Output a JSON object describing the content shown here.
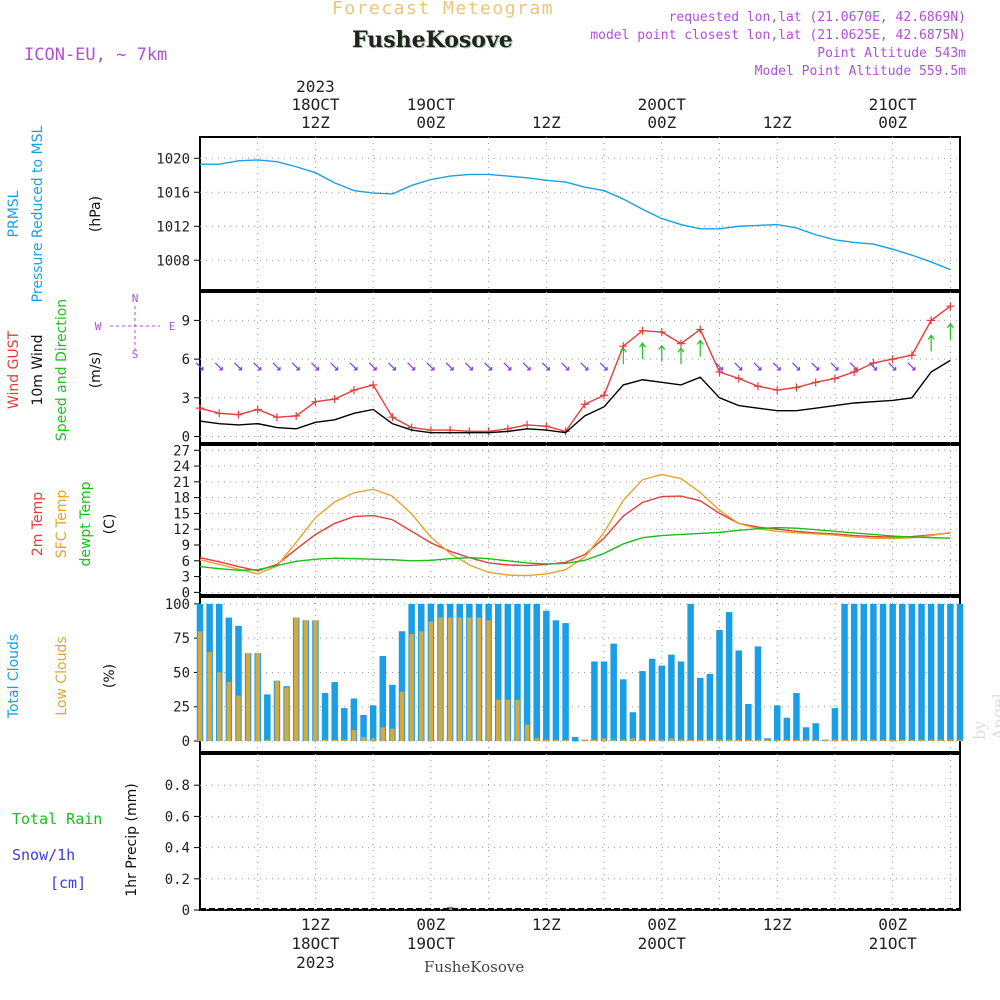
{
  "header": {
    "forecast_title": "Forecast Meteogram",
    "location": "FusheKosove",
    "model": "ICON-EU, ~ 7km",
    "requested": "requested lon,lat (21.0670E, 42.6869N)",
    "closest": "model point closest lon,lat (21.0625E, 42.6875N)",
    "point_alt": "Point Altitude 543m",
    "model_alt": "Model Point Altitude 559.5m"
  },
  "footer": {
    "location": "FusheKosove"
  },
  "watermark": "by Angel",
  "colors": {
    "pressure": "#1aa0e6",
    "gust": "#e63c3c",
    "wind": "#000000",
    "arrows": "#22c022",
    "t2m": "#e63c3c",
    "tsfc": "#e6a428",
    "dewpt": "#18c018",
    "total_clouds": "#1a9ee6",
    "low_clouds": "#d8a83c",
    "rain": "#18c018",
    "snow": "#3c3ce6",
    "label_purple": "#b050d8",
    "title_gold": "#e8c878"
  },
  "chart_data": [
    {
      "type": "line",
      "panel": "pressure",
      "ylabel": [
        "PRMSL",
        "Pressure Reduced to MSL"
      ],
      "unit": "(hPa)",
      "ylim": [
        1004.5,
        1022.5
      ],
      "yticks": [
        1008,
        1012,
        1016,
        1020
      ],
      "x_hours": [
        0,
        2,
        4,
        6,
        8,
        10,
        12,
        14,
        16,
        18,
        20,
        22,
        24,
        26,
        28,
        30,
        32,
        34,
        36,
        38,
        40,
        42,
        44,
        46,
        48,
        50,
        52,
        54,
        56,
        58,
        60,
        62,
        64,
        66,
        68,
        70,
        72,
        74,
        76,
        78
      ],
      "series": [
        {
          "values": [
            1019.3,
            1019.3,
            1019.7,
            1019.8,
            1019.6,
            1019.0,
            1018.3,
            1017.1,
            1016.2,
            1015.9,
            1015.8,
            1016.8,
            1017.5,
            1017.9,
            1018.1,
            1018.1,
            1017.9,
            1017.7,
            1017.4,
            1017.2,
            1016.6,
            1016.2,
            1015.2,
            1014.0,
            1012.9,
            1012.2,
            1011.7,
            1011.7,
            1012.0,
            1012.1,
            1012.2,
            1011.8,
            1011.0,
            1010.4,
            1010.1,
            1009.9,
            1009.3,
            1008.6,
            1007.8,
            1006.9
          ]
        }
      ]
    },
    {
      "type": "line",
      "panel": "wind",
      "ylabel": [
        "Wind GUST",
        "10m Wind",
        "Speed and Direction"
      ],
      "unit": "(m/s)",
      "compass": [
        "N",
        "W",
        "E",
        "S"
      ],
      "ylim": [
        -0.5,
        11.2
      ],
      "yticks": [
        0,
        3,
        6,
        9
      ],
      "x_hours": [
        0,
        2,
        4,
        6,
        8,
        10,
        12,
        14,
        16,
        18,
        20,
        22,
        24,
        26,
        28,
        30,
        32,
        34,
        36,
        38,
        40,
        42,
        44,
        46,
        48,
        50,
        52,
        54,
        56,
        58,
        60,
        62,
        64,
        66,
        68,
        70,
        72,
        74,
        76,
        78
      ],
      "series": [
        {
          "name": "Wind GUST",
          "values": [
            2.2,
            1.8,
            1.7,
            2.1,
            1.5,
            1.6,
            2.7,
            2.9,
            3.6,
            4.0,
            1.5,
            0.7,
            0.5,
            0.5,
            0.4,
            0.4,
            0.6,
            0.9,
            0.8,
            0.4,
            2.5,
            3.2,
            7.0,
            8.2,
            8.1,
            7.2,
            8.3,
            5.0,
            4.5,
            3.9,
            3.6,
            3.8,
            4.2,
            4.5,
            5.0,
            5.7,
            6.0,
            6.3,
            9.0,
            10.1
          ]
        },
        {
          "name": "10m Wind",
          "values": [
            1.2,
            1.0,
            0.9,
            1.0,
            0.7,
            0.6,
            1.1,
            1.3,
            1.8,
            2.1,
            1.0,
            0.5,
            0.3,
            0.3,
            0.3,
            0.3,
            0.4,
            0.6,
            0.5,
            0.3,
            1.6,
            2.3,
            4.0,
            4.4,
            4.2,
            4.0,
            4.6,
            3.0,
            2.4,
            2.2,
            2.0,
            2.0,
            2.2,
            2.4,
            2.6,
            2.7,
            2.8,
            3.0,
            5.0,
            5.9
          ]
        }
      ]
    },
    {
      "type": "line",
      "panel": "temperature",
      "ylabel": [
        "2m Temp",
        "SFC Temp",
        "dewpt Temp"
      ],
      "unit": "(C)",
      "ylim": [
        -0.5,
        28
      ],
      "yticks": [
        0,
        3,
        6,
        9,
        12,
        15,
        18,
        21,
        24,
        27
      ],
      "x_hours": [
        0,
        2,
        4,
        6,
        8,
        10,
        12,
        14,
        16,
        18,
        20,
        22,
        24,
        26,
        28,
        30,
        32,
        34,
        36,
        38,
        40,
        42,
        44,
        46,
        48,
        50,
        52,
        54,
        56,
        58,
        60,
        62,
        64,
        66,
        68,
        70,
        72,
        74,
        76,
        78
      ],
      "series": [
        {
          "name": "2m Temp",
          "values": [
            6.6,
            5.8,
            4.9,
            4.1,
            5.3,
            8.2,
            11.0,
            13.1,
            14.4,
            14.6,
            13.8,
            11.6,
            9.4,
            7.8,
            6.6,
            5.6,
            5.2,
            5.1,
            5.3,
            5.7,
            7.2,
            10.3,
            14.5,
            17.1,
            18.2,
            18.3,
            17.4,
            15.0,
            13.1,
            12.4,
            12.0,
            11.6,
            11.3,
            11.1,
            10.8,
            10.6,
            10.5,
            10.6,
            10.9,
            11.3
          ]
        },
        {
          "name": "SFC Temp",
          "values": [
            6.2,
            5.3,
            4.4,
            3.5,
            5.0,
            9.5,
            14.2,
            17.2,
            18.9,
            19.6,
            18.3,
            14.9,
            10.5,
            7.4,
            5.2,
            3.8,
            3.3,
            3.2,
            3.5,
            4.3,
            6.7,
            11.4,
            17.5,
            21.4,
            22.4,
            21.6,
            19.0,
            15.6,
            13.1,
            12.1,
            11.6,
            11.3,
            11.1,
            10.9,
            10.5,
            10.3,
            10.2,
            10.4,
            10.8,
            11.4
          ]
        },
        {
          "name": "dewpt Temp",
          "values": [
            4.9,
            4.5,
            4.2,
            4.3,
            5.1,
            5.9,
            6.3,
            6.5,
            6.4,
            6.3,
            6.2,
            6.0,
            6.1,
            6.4,
            6.6,
            6.4,
            6.0,
            5.6,
            5.4,
            5.5,
            6.1,
            7.4,
            9.2,
            10.4,
            10.8,
            11.0,
            11.2,
            11.4,
            11.8,
            12.1,
            12.3,
            12.2,
            11.9,
            11.6,
            11.3,
            11.0,
            10.7,
            10.5,
            10.4,
            10.3
          ]
        }
      ]
    },
    {
      "type": "bar",
      "panel": "clouds",
      "ylabel": [
        "Total Clouds",
        "Low Clouds"
      ],
      "unit": "(%)",
      "ylim": [
        -8,
        105
      ],
      "yticks": [
        0,
        25,
        50,
        75,
        100
      ],
      "x_hours": [
        0,
        1,
        2,
        3,
        4,
        5,
        6,
        7,
        8,
        9,
        10,
        11,
        12,
        13,
        14,
        15,
        16,
        17,
        18,
        19,
        20,
        21,
        22,
        23,
        24,
        25,
        26,
        27,
        28,
        29,
        30,
        31,
        32,
        33,
        34,
        35,
        36,
        37,
        38,
        39,
        40,
        41,
        42,
        43,
        44,
        45,
        46,
        47,
        48,
        49,
        50,
        51,
        52,
        53,
        54,
        55,
        56,
        57,
        58,
        59,
        60,
        61,
        62,
        63,
        64,
        65,
        66,
        67,
        68,
        69,
        70,
        71,
        72,
        73,
        74,
        75,
        76,
        77,
        78,
        79
      ],
      "series": [
        {
          "name": "Total Clouds",
          "values": [
            100,
            100,
            100,
            90,
            84,
            64,
            64,
            34,
            44,
            40,
            90,
            88,
            88,
            35,
            43,
            24,
            31,
            19,
            26,
            62,
            41,
            80,
            100,
            100,
            100,
            100,
            100,
            100,
            100,
            100,
            100,
            100,
            100,
            100,
            100,
            100,
            95,
            88,
            86,
            3,
            1,
            58,
            58,
            71,
            45,
            21,
            51,
            60,
            55,
            63,
            58,
            100,
            46,
            49,
            81,
            94,
            66,
            27,
            69,
            2,
            26,
            17,
            35,
            10,
            13,
            1,
            24,
            100,
            100,
            100,
            100,
            100,
            100,
            100,
            100,
            100,
            100,
            100,
            100,
            100
          ]
        },
        {
          "name": "Low Clouds",
          "values": [
            80,
            65,
            50,
            43,
            33,
            64,
            64,
            1,
            44,
            39,
            90,
            88,
            88,
            1,
            1,
            1,
            8,
            3,
            2,
            10,
            9,
            36,
            78,
            80,
            87,
            90,
            90,
            90,
            90,
            90,
            88,
            30,
            30,
            30,
            12,
            2,
            1,
            1,
            1,
            0,
            1,
            1,
            2,
            1,
            1,
            2,
            1,
            1,
            1,
            2,
            1,
            1,
            1,
            1,
            1,
            1,
            1,
            1,
            1,
            1,
            1,
            1,
            1,
            1,
            1,
            1,
            1,
            1,
            1,
            1,
            1,
            1,
            1,
            1,
            1,
            1,
            1,
            1,
            1,
            1
          ]
        }
      ]
    },
    {
      "type": "bar",
      "panel": "precip",
      "ylabel": [
        "1hr Precip (mm)"
      ],
      "legend": [
        "Total Rain",
        "Snow/1h",
        "[cm]"
      ],
      "ylim": [
        0,
        1.0
      ],
      "yticks": [
        0,
        0.2,
        0.4,
        0.6,
        0.8
      ],
      "ytick_labels": [
        "0",
        "0.2",
        "0.4",
        "0.6",
        "0.8"
      ],
      "x_hours": [
        26
      ],
      "series": [
        {
          "name": "Total Rain",
          "values": [
            0.02
          ]
        }
      ]
    }
  ],
  "time_axis": {
    "year": "2023",
    "labels": [
      {
        "h": 12,
        "hour": "12Z",
        "day": "18OCT"
      },
      {
        "h": 24,
        "hour": "00Z",
        "day": "19OCT"
      },
      {
        "h": 36,
        "hour": "12Z",
        "day": ""
      },
      {
        "h": 48,
        "hour": "00Z",
        "day": "20OCT"
      },
      {
        "h": 60,
        "hour": "12Z",
        "day": ""
      },
      {
        "h": 72,
        "hour": "00Z",
        "day": "21OCT"
      }
    ]
  }
}
